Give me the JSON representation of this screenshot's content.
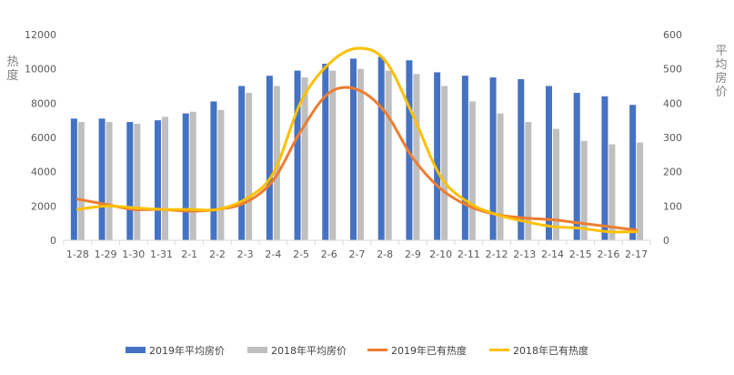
{
  "chart_data": {
    "type": "bar",
    "categories": [
      "1-28",
      "1-29",
      "1-30",
      "1-31",
      "2-1",
      "2-2",
      "2-3",
      "2-4",
      "2-5",
      "2-6",
      "2-7",
      "2-8",
      "2-9",
      "2-10",
      "2-11",
      "2-12",
      "2-13",
      "2-14",
      "2-15",
      "2-16",
      "2-17"
    ],
    "ylabel_left": "热度",
    "ylabel_right": "平均房价",
    "ylim_left": [
      0,
      12000
    ],
    "ylim_right": [
      0,
      600
    ],
    "left_ticks": [
      0,
      2000,
      4000,
      6000,
      8000,
      10000,
      12000
    ],
    "right_ticks": [
      0,
      100,
      200,
      300,
      400,
      500,
      600
    ],
    "legend_position": "bottom",
    "grid": false,
    "series": [
      {
        "name": "2019年平均房价",
        "kind": "bar",
        "axis": "left",
        "color": "#4472c4",
        "values": [
          7100,
          7100,
          6900,
          7000,
          7400,
          8100,
          9000,
          9600,
          9900,
          10300,
          10600,
          10700,
          10500,
          9800,
          9600,
          9500,
          9400,
          9000,
          8600,
          8400,
          7900
        ]
      },
      {
        "name": "2018年平均房价",
        "kind": "bar",
        "axis": "left",
        "color": "#bfbfbf",
        "values": [
          6900,
          6900,
          6800,
          7200,
          7500,
          7600,
          8600,
          9000,
          9500,
          9900,
          10000,
          9900,
          9700,
          9000,
          8100,
          7400,
          6900,
          6500,
          5800,
          5600,
          5700
        ]
      },
      {
        "name": "2019年已有热度",
        "kind": "line",
        "axis": "left",
        "color": "#ed7d31",
        "values": [
          2400,
          2100,
          1800,
          1800,
          1700,
          1800,
          2200,
          3500,
          6400,
          8600,
          8800,
          7500,
          4800,
          3000,
          2000,
          1500,
          1300,
          1200,
          1000,
          800,
          600
        ]
      },
      {
        "name": "2018年已有热度",
        "kind": "line",
        "axis": "left",
        "color": "#ffc000",
        "values": [
          1800,
          2000,
          1900,
          1800,
          1800,
          1800,
          2400,
          3900,
          8100,
          10300,
          11200,
          10500,
          7300,
          3700,
          2200,
          1500,
          1100,
          800,
          700,
          500,
          500
        ]
      }
    ]
  }
}
